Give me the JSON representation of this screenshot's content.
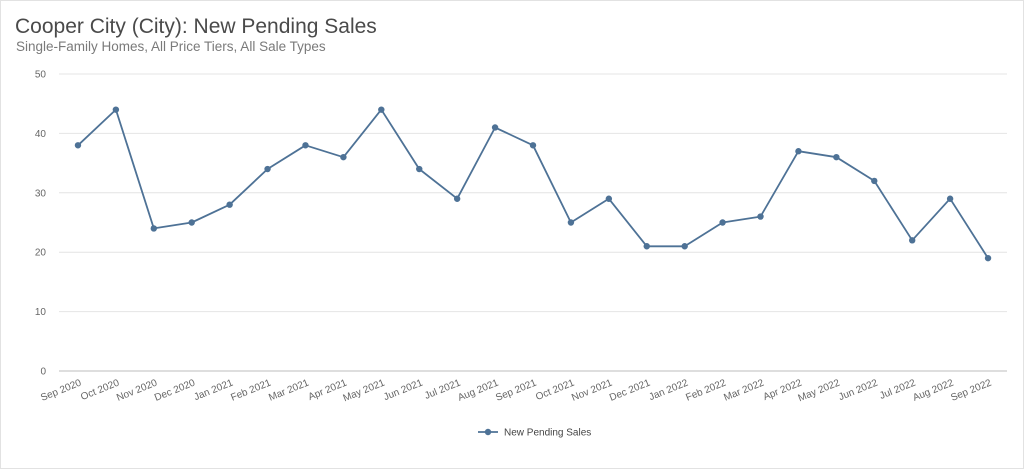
{
  "header": {
    "title": "Cooper City (City): New Pending Sales",
    "subtitle": "Single-Family Homes, All Price Tiers, All Sale Types"
  },
  "chart_data": {
    "type": "line",
    "title": "Cooper City (City): New Pending Sales",
    "subtitle": "Single-Family Homes, All Price Tiers, All Sale Types",
    "xlabel": "",
    "ylabel": "",
    "ylim": [
      0,
      50
    ],
    "yticks": [
      0,
      10,
      20,
      30,
      40,
      50
    ],
    "grid": true,
    "legend_position": "bottom-center",
    "categories": [
      "Sep 2020",
      "Oct 2020",
      "Nov 2020",
      "Dec 2020",
      "Jan 2021",
      "Feb 2021",
      "Mar 2021",
      "Apr 2021",
      "May 2021",
      "Jun 2021",
      "Jul 2021",
      "Aug 2021",
      "Sep 2021",
      "Oct 2021",
      "Nov 2021",
      "Dec 2021",
      "Jan 2022",
      "Feb 2022",
      "Mar 2022",
      "Apr 2022",
      "May 2022",
      "Jun 2022",
      "Jul 2022",
      "Aug 2022",
      "Sep 2022"
    ],
    "series": [
      {
        "name": "New Pending Sales",
        "color": "#4e7296",
        "values": [
          38,
          44,
          24,
          25,
          28,
          34,
          38,
          36,
          44,
          34,
          29,
          41,
          38,
          25,
          29,
          21,
          21,
          25,
          26,
          37,
          36,
          32,
          22,
          29,
          19
        ]
      }
    ]
  }
}
